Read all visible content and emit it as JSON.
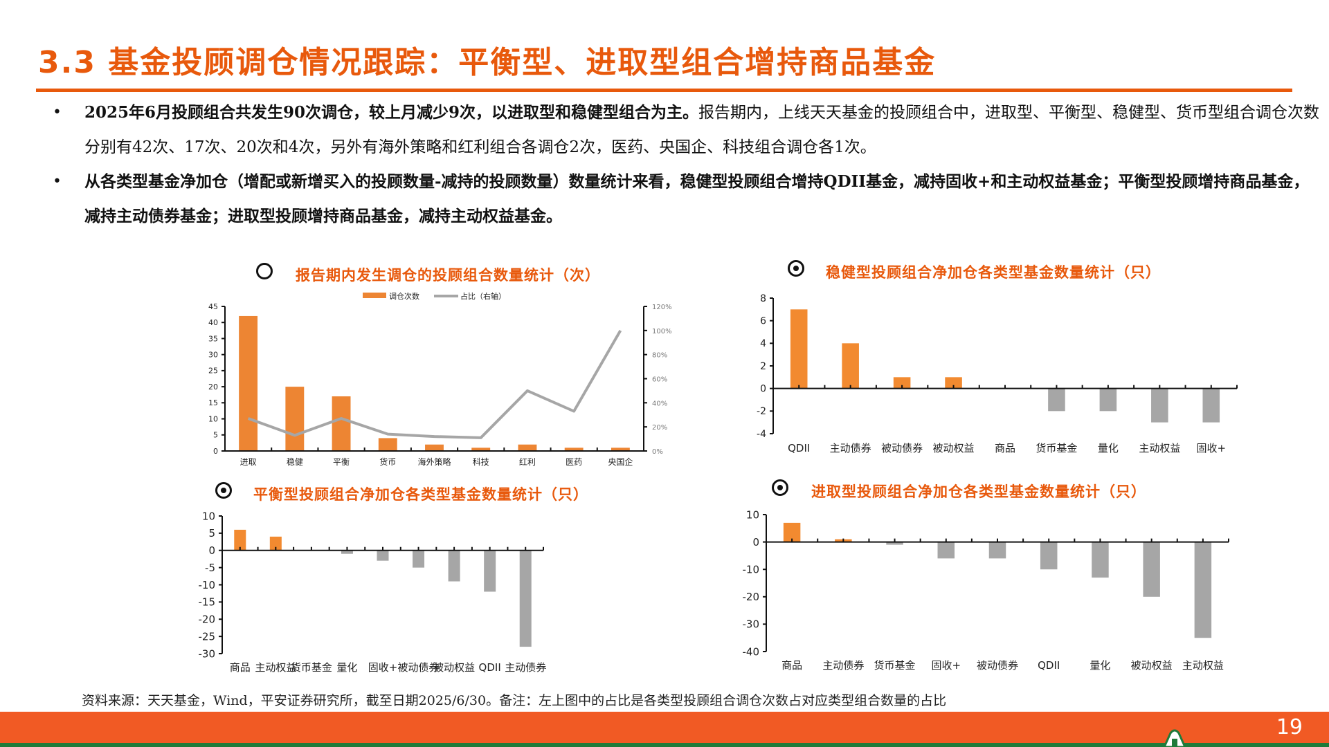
{
  "header": {
    "title": "3.3 基金投顾调仓情况跟踪：平衡型、进取型组合增持商品基金"
  },
  "bullets": [
    {
      "bold": "2025年6月投顾组合共发生90次调仓，较上月减少9次，以进取型和稳健型组合为主。",
      "normal": "报告期内，上线天天基金的投顾组合中，进取型、平衡型、稳健型、货币型组合调仓次数分别有42次、17次、20次和4次，另外有海外策略和红利组合各调仓2次，医药、央国企、科技组合调仓各1次。"
    },
    {
      "bold": "从各类型基金净加仓（增配或新增买入的投顾数量-减持的投顾数量）数量统计来看，稳健型投顾组合增持QDII基金，减持固收+和主动权益基金；平衡型投顾增持商品基金，减持主动债券基金；进取型投顾增持商品基金，减持主动权益基金。",
      "normal": ""
    }
  ],
  "colors": {
    "accent": "#E8590C",
    "bar_positive": "#F28A30",
    "bar_negative": "#A6A6A6",
    "line": "#A6A6A6",
    "footer": "#F15A24",
    "footer_line": "#1E7B3A"
  },
  "chart_data": [
    {
      "id": "rebalance-count",
      "type": "bar",
      "title": "报告期内发生调仓的投顾组合数量统计（次）",
      "bullet_icon": "open-circle-icon",
      "categories": [
        "进取",
        "稳健",
        "平衡",
        "货币",
        "海外策略",
        "科技",
        "红利",
        "医药",
        "央国企"
      ],
      "series": [
        {
          "name": "调仓次数",
          "type": "bar",
          "axis": "left",
          "values": [
            42,
            20,
            17,
            4,
            2,
            1,
            2,
            1,
            1
          ]
        },
        {
          "name": "占比（右轴）",
          "type": "line",
          "axis": "right",
          "values": [
            27,
            13,
            27,
            14,
            12,
            11,
            50,
            33,
            100
          ]
        }
      ],
      "ylim": [
        0,
        45
      ],
      "yticks": [
        0,
        5,
        10,
        15,
        20,
        25,
        30,
        35,
        40,
        45
      ],
      "y2lim": [
        0,
        120
      ],
      "y2ticks": [
        "0%",
        "20%",
        "40%",
        "60%",
        "80%",
        "100%",
        "120%"
      ],
      "legend_position": "top",
      "grid": false
    },
    {
      "id": "steady-net-add",
      "type": "bar",
      "title": "稳健型投顾组合净加仓各类型基金数量统计（只）",
      "bullet_icon": "filled-circle-icon",
      "categories": [
        "QDII",
        "主动债券",
        "被动债券",
        "被动权益",
        "商品",
        "货币基金",
        "量化",
        "主动权益",
        "固收+"
      ],
      "values": [
        7,
        4,
        1,
        1,
        0,
        -2,
        -2,
        -3,
        -3
      ],
      "ylim": [
        -4,
        8
      ],
      "yticks": [
        -4,
        -2,
        0,
        2,
        4,
        6,
        8
      ],
      "grid": false
    },
    {
      "id": "balanced-net-add",
      "type": "bar",
      "title": "平衡型投顾组合净加仓各类型基金数量统计（只）",
      "bullet_icon": "filled-circle-icon",
      "categories": [
        "商品",
        "主动权益",
        "货币基金",
        "量化",
        "固收+",
        "被动债券",
        "被动权益",
        "QDII",
        "主动债券"
      ],
      "values": [
        6,
        4,
        0,
        -1,
        -3,
        -5,
        -9,
        -12,
        -28
      ],
      "ylim": [
        -30,
        10
      ],
      "yticks": [
        -30,
        -25,
        -20,
        -15,
        -10,
        -5,
        0,
        5,
        10
      ],
      "grid": false
    },
    {
      "id": "aggressive-net-add",
      "type": "bar",
      "title": "进取型投顾组合净加仓各类型基金数量统计（只）",
      "bullet_icon": "filled-circle-icon",
      "categories": [
        "商品",
        "主动债券",
        "货币基金",
        "固收+",
        "被动债券",
        "QDII",
        "量化",
        "被动权益",
        "主动权益"
      ],
      "values": [
        7,
        1,
        -1,
        -6,
        -6,
        -10,
        -13,
        -20,
        -35
      ],
      "ylim": [
        -40,
        10
      ],
      "yticks": [
        -40,
        -30,
        -20,
        -10,
        0,
        10
      ],
      "grid": false
    }
  ],
  "source_note": "资料来源：天天基金，Wind，平安证券研究所，截至日期2025/6/30。备注：左上图中的占比是各类型投顾组合调仓次数占对应类型组合数量的占比",
  "footer": {
    "page_number": "19"
  }
}
